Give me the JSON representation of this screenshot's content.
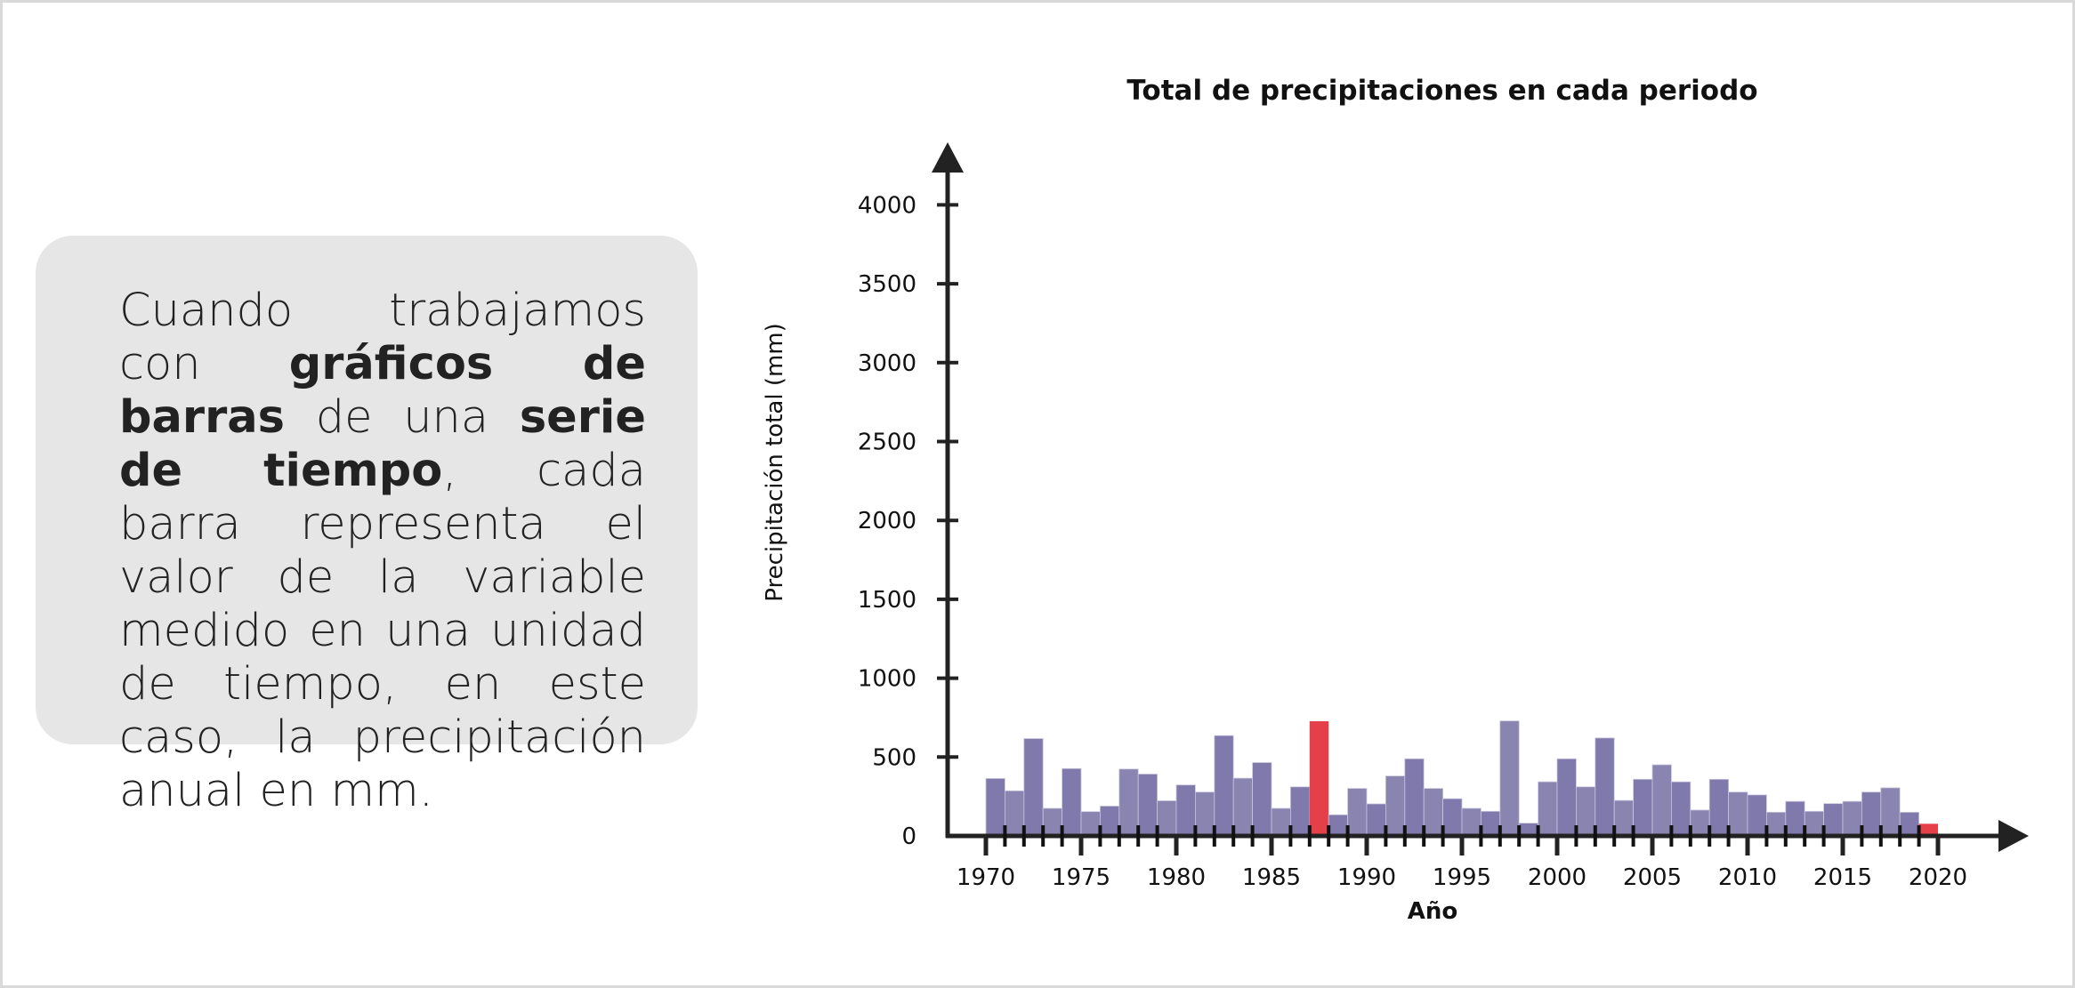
{
  "explanation": {
    "segments": [
      {
        "text": "Cuando trabajamos con ",
        "bold": false
      },
      {
        "text": "gráficos de barras",
        "bold": true
      },
      {
        "text": " de una ",
        "bold": false
      },
      {
        "text": "serie de tiempo",
        "bold": true
      },
      {
        "text": ", cada barra representa el valor de la variable medido en una unidad de tiempo, en este caso, la precipitación anual en mm.",
        "bold": false
      }
    ]
  },
  "chart_data": {
    "type": "bar",
    "title": "Total de precipitaciones en cada periodo",
    "xlabel": "Año",
    "ylabel": "Precipitación total (mm)",
    "ylim": [
      0,
      4000
    ],
    "yticks": [
      0,
      500,
      1000,
      1500,
      2000,
      2500,
      3000,
      3500,
      4000
    ],
    "xticks": [
      1970,
      1975,
      1980,
      1985,
      1990,
      1995,
      2000,
      2005,
      2010,
      2015,
      2020
    ],
    "xlim": [
      1970,
      2020
    ],
    "grid": false,
    "colors": {
      "default": "#8079ac",
      "alt": "#8a84b0",
      "highlight": "#e5404a",
      "axis": "#222222"
    },
    "highlighted_years": [
      1987,
      2019
    ],
    "years": [
      1970,
      1971,
      1972,
      1973,
      1974,
      1975,
      1976,
      1977,
      1978,
      1979,
      1980,
      1981,
      1982,
      1983,
      1984,
      1985,
      1986,
      1987,
      1988,
      1989,
      1990,
      1991,
      1992,
      1993,
      1994,
      1995,
      1996,
      1997,
      1998,
      1999,
      2000,
      2001,
      2002,
      2003,
      2004,
      2005,
      2006,
      2007,
      2008,
      2009,
      2010,
      2011,
      2012,
      2013,
      2014,
      2015,
      2016,
      2017,
      2018,
      2019
    ],
    "values": [
      364,
      286,
      617,
      175,
      427,
      154,
      189,
      424,
      392,
      223,
      323,
      278,
      636,
      366,
      465,
      175,
      311,
      727,
      134,
      301,
      203,
      380,
      489,
      301,
      236,
      175,
      156,
      729,
      81,
      343,
      489,
      311,
      621,
      225,
      359,
      451,
      343,
      164,
      359,
      278,
      260,
      150,
      219,
      156,
      205,
      219,
      278,
      305,
      150,
      77
    ]
  }
}
